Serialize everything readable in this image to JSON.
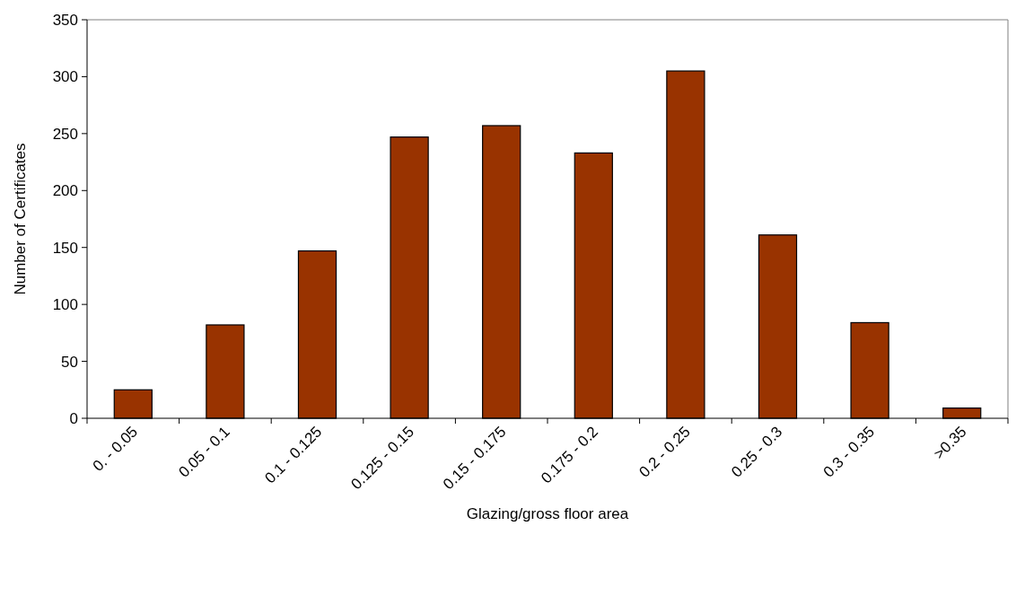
{
  "chart_data": {
    "type": "bar",
    "xlabel": "Glazing/gross floor area",
    "ylabel": "Number of Certificates",
    "categories": [
      "0. - 0.05",
      "0.05 - 0.1",
      "0.1 - 0.125",
      "0.125 - 0.15",
      "0.15 - 0.175",
      "0.175 - 0.2",
      "0.2 - 0.25",
      "0.25 - 0.3",
      "0.3 - 0.35",
      ">0.35"
    ],
    "values": [
      25,
      82,
      147,
      247,
      257,
      233,
      305,
      161,
      84,
      9
    ],
    "color": "#993300",
    "ylim": [
      0,
      350
    ],
    "yticks": [
      0,
      50,
      100,
      150,
      200,
      250,
      300,
      350
    ],
    "grid": false
  }
}
